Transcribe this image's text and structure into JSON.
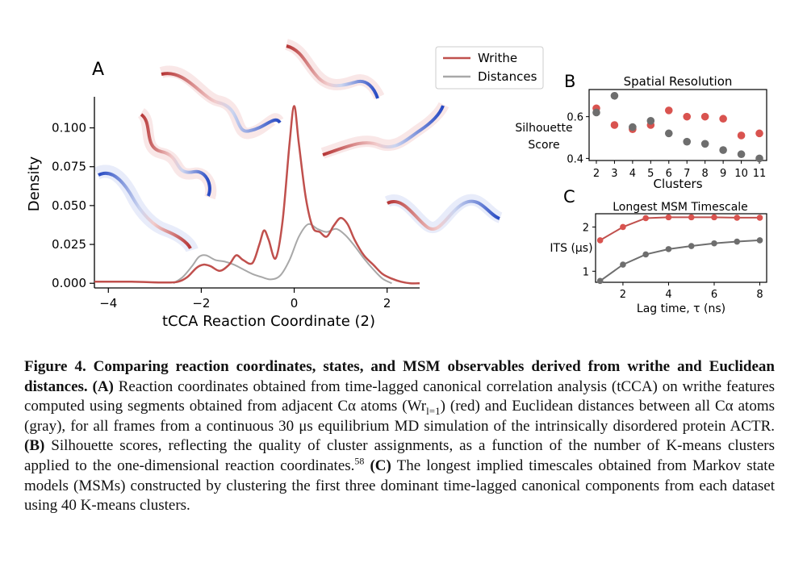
{
  "panel_a": {
    "letter": "A",
    "xlabel": "tCCA Reaction Coordinate (2)",
    "ylabel": "Density",
    "xticks": [
      "−4",
      "−2",
      "0",
      "2"
    ],
    "yticks": [
      "0.000",
      "0.025",
      "0.050",
      "0.075",
      "0.100"
    ],
    "legend": [
      "Writhe",
      "Distances"
    ]
  },
  "panel_b": {
    "letter": "B",
    "title": "Spatial Resolution",
    "xlabel": "Clusters",
    "ylabel_line1": "Silhouette",
    "ylabel_line2": "Score",
    "xticks": [
      "2",
      "3",
      "4",
      "5",
      "6",
      "7",
      "8",
      "9",
      "10",
      "11"
    ],
    "yticks": [
      "0.4",
      "0.6"
    ]
  },
  "panel_c": {
    "letter": "C",
    "title": "Longest MSM Timescale",
    "xlabel": "Lag time, τ (ns)",
    "ylabel": "ITS (μs)",
    "xticks": [
      "2",
      "4",
      "6",
      "8"
    ],
    "yticks": [
      "1",
      "2"
    ]
  },
  "colors": {
    "writhe": "#c0504d",
    "distances": "#a8a8a8",
    "writhe_dot": "#d9534f",
    "distances_dot": "#6e6e6e"
  },
  "chart_data": [
    {
      "type": "line",
      "panel": "A",
      "xlabel": "tCCA Reaction Coordinate (2)",
      "ylabel": "Density",
      "xlim": [
        -4.3,
        2.7
      ],
      "ylim": [
        -0.003,
        0.12
      ],
      "series": [
        {
          "name": "Writhe",
          "x": [
            -4.3,
            -3.5,
            -2.8,
            -2.5,
            -2.3,
            -2.1,
            -1.95,
            -1.8,
            -1.6,
            -1.4,
            -1.25,
            -1.1,
            -0.9,
            -0.75,
            -0.65,
            -0.55,
            -0.4,
            -0.25,
            -0.1,
            0.0,
            0.1,
            0.25,
            0.4,
            0.55,
            0.7,
            0.85,
            1.0,
            1.15,
            1.3,
            1.5,
            1.7,
            1.9,
            2.1,
            2.3,
            2.5,
            2.7
          ],
          "y": [
            0.001,
            0.001,
            0.0005,
            0.001,
            0.004,
            0.01,
            0.012,
            0.011,
            0.008,
            0.012,
            0.018,
            0.015,
            0.013,
            0.025,
            0.034,
            0.028,
            0.016,
            0.04,
            0.09,
            0.114,
            0.09,
            0.055,
            0.036,
            0.033,
            0.03,
            0.037,
            0.042,
            0.038,
            0.028,
            0.018,
            0.012,
            0.006,
            0.003,
            0.001,
            0.0,
            0.0
          ]
        },
        {
          "name": "Distances",
          "x": [
            -2.6,
            -2.4,
            -2.2,
            -2.05,
            -1.9,
            -1.7,
            -1.5,
            -1.3,
            -1.1,
            -0.9,
            -0.7,
            -0.5,
            -0.3,
            -0.1,
            0.1,
            0.3,
            0.5,
            0.7,
            0.9,
            1.1,
            1.3,
            1.5,
            1.7,
            1.9,
            2.1
          ],
          "y": [
            0.0,
            0.004,
            0.011,
            0.017,
            0.018,
            0.015,
            0.014,
            0.012,
            0.009,
            0.006,
            0.004,
            0.0025,
            0.005,
            0.015,
            0.03,
            0.038,
            0.035,
            0.033,
            0.035,
            0.031,
            0.024,
            0.016,
            0.009,
            0.003,
            0.0
          ]
        }
      ]
    },
    {
      "type": "scatter",
      "panel": "B",
      "title": "Spatial Resolution",
      "xlabel": "Clusters",
      "ylabel": "Silhouette Score",
      "xlim": [
        1.6,
        11.4
      ],
      "ylim": [
        0.39,
        0.73
      ],
      "x": [
        2,
        3,
        4,
        5,
        6,
        7,
        8,
        9,
        10,
        11
      ],
      "series": [
        {
          "name": "Writhe",
          "values": [
            0.64,
            0.56,
            0.54,
            0.56,
            0.63,
            0.6,
            0.6,
            0.59,
            0.51,
            0.52
          ]
        },
        {
          "name": "Distances",
          "values": [
            0.62,
            0.7,
            0.55,
            0.58,
            0.52,
            0.48,
            0.47,
            0.44,
            0.42,
            0.4
          ]
        }
      ]
    },
    {
      "type": "line",
      "panel": "C",
      "title": "Longest MSM Timescale",
      "xlabel": "Lag time, τ (ns)",
      "ylabel": "ITS (μs)",
      "xlim": [
        0.8,
        8.3
      ],
      "ylim": [
        0.75,
        2.3
      ],
      "x": [
        1,
        2,
        3,
        4,
        5,
        6,
        7,
        8
      ],
      "series": [
        {
          "name": "Writhe",
          "values": [
            1.7,
            2.0,
            2.2,
            2.22,
            2.22,
            2.22,
            2.21,
            2.21
          ]
        },
        {
          "name": "Distances",
          "values": [
            0.78,
            1.15,
            1.38,
            1.5,
            1.57,
            1.63,
            1.67,
            1.7
          ]
        }
      ]
    }
  ],
  "caption": {
    "title": "Figure 4. Comparing reaction coordinates, states, and MSM observables derived from writhe and Euclidean distances.",
    "part_a_label": "(A)",
    "part_a_text1": "Reaction coordinates obtained from time-lagged canonical correlation analysis (tCCA) on writhe features computed using segments obtained from adjacent Cα atoms (Wr",
    "part_a_sub": "l=1",
    "part_a_text2": ") (red) and Euclidean distances between all Cα atoms (gray), for all frames from a continuous 30 μs equilibrium MD simulation of the intrinsically disordered protein ACTR.",
    "part_b_label": "(B)",
    "part_b_text": "Silhouette scores, reflecting the quality of cluster assignments, as a function of the number of K-means clusters applied to the one-dimensional reaction coordinates.",
    "part_b_ref": "58",
    "part_c_label": "(C)",
    "part_c_text": "The longest implied timescales obtained from Markov state models (MSMs) constructed by clustering the first three dominant time-lagged canonical components from each dataset using 40 K-means clusters."
  }
}
